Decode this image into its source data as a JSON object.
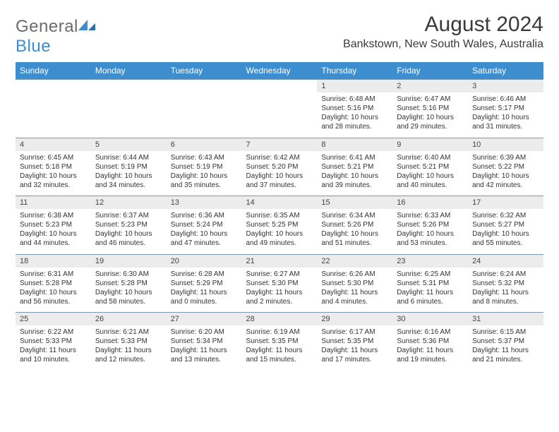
{
  "logo": {
    "text1": "General",
    "text2": "Blue"
  },
  "title": "August 2024",
  "subtitle": "Bankstown, New South Wales, Australia",
  "colors": {
    "header_bg": "#3d8ecf",
    "header_text": "#ffffff",
    "daynum_bg": "#ececec",
    "row_border": "#7a98b0",
    "logo_gray": "#6b6b6b",
    "logo_blue": "#3d8ecf"
  },
  "dayHeaders": [
    "Sunday",
    "Monday",
    "Tuesday",
    "Wednesday",
    "Thursday",
    "Friday",
    "Saturday"
  ],
  "weeks": [
    {
      "nums": [
        "",
        "",
        "",
        "",
        "1",
        "2",
        "3"
      ],
      "details": [
        null,
        null,
        null,
        null,
        {
          "sunrise": "Sunrise: 6:48 AM",
          "sunset": "Sunset: 5:16 PM",
          "day1": "Daylight: 10 hours",
          "day2": "and 28 minutes."
        },
        {
          "sunrise": "Sunrise: 6:47 AM",
          "sunset": "Sunset: 5:16 PM",
          "day1": "Daylight: 10 hours",
          "day2": "and 29 minutes."
        },
        {
          "sunrise": "Sunrise: 6:46 AM",
          "sunset": "Sunset: 5:17 PM",
          "day1": "Daylight: 10 hours",
          "day2": "and 31 minutes."
        }
      ]
    },
    {
      "nums": [
        "4",
        "5",
        "6",
        "7",
        "8",
        "9",
        "10"
      ],
      "details": [
        {
          "sunrise": "Sunrise: 6:45 AM",
          "sunset": "Sunset: 5:18 PM",
          "day1": "Daylight: 10 hours",
          "day2": "and 32 minutes."
        },
        {
          "sunrise": "Sunrise: 6:44 AM",
          "sunset": "Sunset: 5:19 PM",
          "day1": "Daylight: 10 hours",
          "day2": "and 34 minutes."
        },
        {
          "sunrise": "Sunrise: 6:43 AM",
          "sunset": "Sunset: 5:19 PM",
          "day1": "Daylight: 10 hours",
          "day2": "and 35 minutes."
        },
        {
          "sunrise": "Sunrise: 6:42 AM",
          "sunset": "Sunset: 5:20 PM",
          "day1": "Daylight: 10 hours",
          "day2": "and 37 minutes."
        },
        {
          "sunrise": "Sunrise: 6:41 AM",
          "sunset": "Sunset: 5:21 PM",
          "day1": "Daylight: 10 hours",
          "day2": "and 39 minutes."
        },
        {
          "sunrise": "Sunrise: 6:40 AM",
          "sunset": "Sunset: 5:21 PM",
          "day1": "Daylight: 10 hours",
          "day2": "and 40 minutes."
        },
        {
          "sunrise": "Sunrise: 6:39 AM",
          "sunset": "Sunset: 5:22 PM",
          "day1": "Daylight: 10 hours",
          "day2": "and 42 minutes."
        }
      ]
    },
    {
      "nums": [
        "11",
        "12",
        "13",
        "14",
        "15",
        "16",
        "17"
      ],
      "details": [
        {
          "sunrise": "Sunrise: 6:38 AM",
          "sunset": "Sunset: 5:23 PM",
          "day1": "Daylight: 10 hours",
          "day2": "and 44 minutes."
        },
        {
          "sunrise": "Sunrise: 6:37 AM",
          "sunset": "Sunset: 5:23 PM",
          "day1": "Daylight: 10 hours",
          "day2": "and 46 minutes."
        },
        {
          "sunrise": "Sunrise: 6:36 AM",
          "sunset": "Sunset: 5:24 PM",
          "day1": "Daylight: 10 hours",
          "day2": "and 47 minutes."
        },
        {
          "sunrise": "Sunrise: 6:35 AM",
          "sunset": "Sunset: 5:25 PM",
          "day1": "Daylight: 10 hours",
          "day2": "and 49 minutes."
        },
        {
          "sunrise": "Sunrise: 6:34 AM",
          "sunset": "Sunset: 5:26 PM",
          "day1": "Daylight: 10 hours",
          "day2": "and 51 minutes."
        },
        {
          "sunrise": "Sunrise: 6:33 AM",
          "sunset": "Sunset: 5:26 PM",
          "day1": "Daylight: 10 hours",
          "day2": "and 53 minutes."
        },
        {
          "sunrise": "Sunrise: 6:32 AM",
          "sunset": "Sunset: 5:27 PM",
          "day1": "Daylight: 10 hours",
          "day2": "and 55 minutes."
        }
      ]
    },
    {
      "nums": [
        "18",
        "19",
        "20",
        "21",
        "22",
        "23",
        "24"
      ],
      "details": [
        {
          "sunrise": "Sunrise: 6:31 AM",
          "sunset": "Sunset: 5:28 PM",
          "day1": "Daylight: 10 hours",
          "day2": "and 56 minutes."
        },
        {
          "sunrise": "Sunrise: 6:30 AM",
          "sunset": "Sunset: 5:28 PM",
          "day1": "Daylight: 10 hours",
          "day2": "and 58 minutes."
        },
        {
          "sunrise": "Sunrise: 6:28 AM",
          "sunset": "Sunset: 5:29 PM",
          "day1": "Daylight: 11 hours",
          "day2": "and 0 minutes."
        },
        {
          "sunrise": "Sunrise: 6:27 AM",
          "sunset": "Sunset: 5:30 PM",
          "day1": "Daylight: 11 hours",
          "day2": "and 2 minutes."
        },
        {
          "sunrise": "Sunrise: 6:26 AM",
          "sunset": "Sunset: 5:30 PM",
          "day1": "Daylight: 11 hours",
          "day2": "and 4 minutes."
        },
        {
          "sunrise": "Sunrise: 6:25 AM",
          "sunset": "Sunset: 5:31 PM",
          "day1": "Daylight: 11 hours",
          "day2": "and 6 minutes."
        },
        {
          "sunrise": "Sunrise: 6:24 AM",
          "sunset": "Sunset: 5:32 PM",
          "day1": "Daylight: 11 hours",
          "day2": "and 8 minutes."
        }
      ]
    },
    {
      "nums": [
        "25",
        "26",
        "27",
        "28",
        "29",
        "30",
        "31"
      ],
      "details": [
        {
          "sunrise": "Sunrise: 6:22 AM",
          "sunset": "Sunset: 5:33 PM",
          "day1": "Daylight: 11 hours",
          "day2": "and 10 minutes."
        },
        {
          "sunrise": "Sunrise: 6:21 AM",
          "sunset": "Sunset: 5:33 PM",
          "day1": "Daylight: 11 hours",
          "day2": "and 12 minutes."
        },
        {
          "sunrise": "Sunrise: 6:20 AM",
          "sunset": "Sunset: 5:34 PM",
          "day1": "Daylight: 11 hours",
          "day2": "and 13 minutes."
        },
        {
          "sunrise": "Sunrise: 6:19 AM",
          "sunset": "Sunset: 5:35 PM",
          "day1": "Daylight: 11 hours",
          "day2": "and 15 minutes."
        },
        {
          "sunrise": "Sunrise: 6:17 AM",
          "sunset": "Sunset: 5:35 PM",
          "day1": "Daylight: 11 hours",
          "day2": "and 17 minutes."
        },
        {
          "sunrise": "Sunrise: 6:16 AM",
          "sunset": "Sunset: 5:36 PM",
          "day1": "Daylight: 11 hours",
          "day2": "and 19 minutes."
        },
        {
          "sunrise": "Sunrise: 6:15 AM",
          "sunset": "Sunset: 5:37 PM",
          "day1": "Daylight: 11 hours",
          "day2": "and 21 minutes."
        }
      ]
    }
  ]
}
